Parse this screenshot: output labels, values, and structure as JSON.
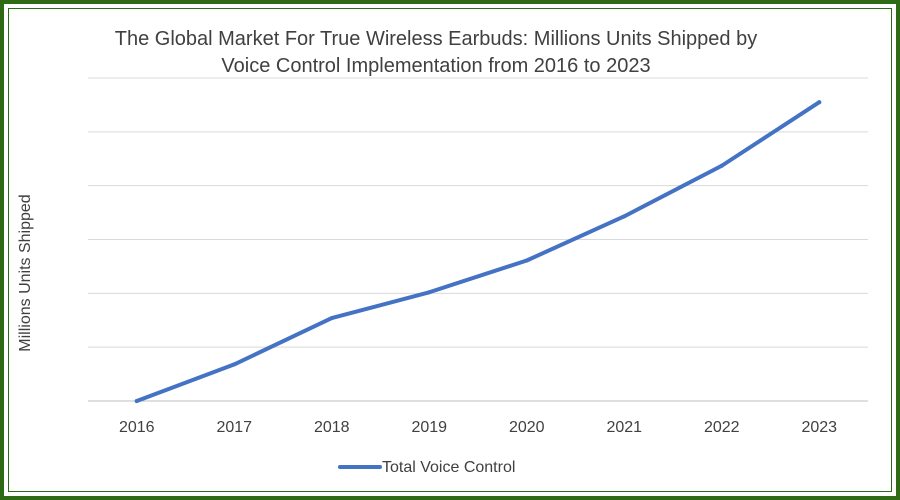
{
  "chart_data": {
    "type": "line",
    "title_lines": [
      "The Global Market For True Wireless Earbuds: Millions Units Shipped by",
      "Voice Control Implementation from 2016 to 2023"
    ],
    "xlabel": "",
    "ylabel": "Millions Units Shipped",
    "categories": [
      "2016",
      "2017",
      "2018",
      "2019",
      "2020",
      "2021",
      "2022",
      "2023"
    ],
    "series": [
      {
        "name": "Total Voice Control",
        "color": "#4472c4",
        "values": [
          0,
          0.68,
          1.54,
          2.02,
          2.61,
          3.43,
          4.37,
          5.55
        ]
      }
    ],
    "ylim": [
      0,
      6
    ],
    "y_tick_labels_shown": false,
    "grid": true,
    "legend": "bottom"
  }
}
